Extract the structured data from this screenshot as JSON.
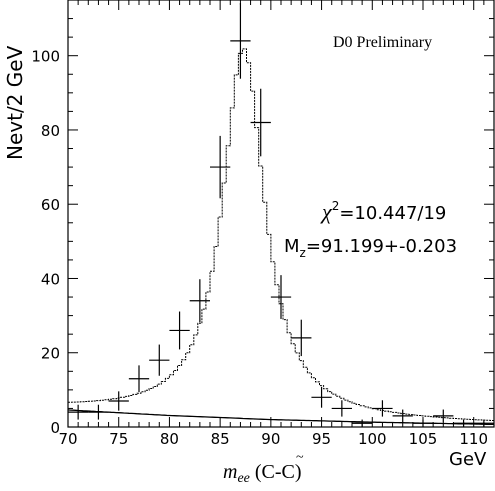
{
  "chart_data": {
    "type": "scatter",
    "title": "D0 Preliminary",
    "ylabel": "Nevt/2 GeV",
    "x_unit_label": "GeV",
    "xlabel_main": "m",
    "xlabel_sub": "ee",
    "xlabel_suffix": " (C-C)",
    "xlim": [
      70,
      112
    ],
    "ylim": [
      0,
      115
    ],
    "x_ticks": [
      70,
      75,
      80,
      85,
      90,
      95,
      100,
      105,
      110
    ],
    "y_ticks": [
      0,
      20,
      40,
      60,
      80,
      100
    ],
    "annotations": {
      "chi2_symbol": "χ",
      "chi2_sup": "2",
      "chi2_value": "=10.447/19",
      "mass_symbol": "M",
      "mass_sub": "z",
      "mass_value": "=91.199+-0.203"
    },
    "series": [
      {
        "kind": "data_points",
        "points": [
          {
            "x": 71,
            "y": 4,
            "yerr": 2
          },
          {
            "x": 73,
            "y": 4,
            "yerr": 2
          },
          {
            "x": 75,
            "y": 7,
            "yerr": 2.6
          },
          {
            "x": 77,
            "y": 13,
            "yerr": 3.6
          },
          {
            "x": 79,
            "y": 18,
            "yerr": 4.2
          },
          {
            "x": 81,
            "y": 26,
            "yerr": 5.1
          },
          {
            "x": 83,
            "y": 34,
            "yerr": 5.8
          },
          {
            "x": 85,
            "y": 70,
            "yerr": 8.4
          },
          {
            "x": 87,
            "y": 104,
            "yerr": 10.2
          },
          {
            "x": 89,
            "y": 82,
            "yerr": 9.1
          },
          {
            "x": 91,
            "y": 35,
            "yerr": 5.9
          },
          {
            "x": 93,
            "y": 24,
            "yerr": 4.9
          },
          {
            "x": 95,
            "y": 8,
            "yerr": 2.8
          },
          {
            "x": 97,
            "y": 5,
            "yerr": 2.2
          },
          {
            "x": 99,
            "y": 1,
            "yerr": 1
          },
          {
            "x": 101,
            "y": 5,
            "yerr": 2.2
          },
          {
            "x": 103,
            "y": 3,
            "yerr": 1.7
          },
          {
            "x": 105,
            "y": 1,
            "yerr": 1
          },
          {
            "x": 107,
            "y": 3,
            "yerr": 1.7
          },
          {
            "x": 109,
            "y": 1,
            "yerr": 1
          },
          {
            "x": 111,
            "y": 1,
            "yerr": 1
          }
        ]
      },
      {
        "kind": "fit_curve",
        "model": "breit_wigner_plus_background",
        "peak_x": 87.3,
        "peak_y": 102,
        "half_width": 2.5
      },
      {
        "kind": "background_curve",
        "points": [
          [
            70,
            4.6
          ],
          [
            80,
            3.1
          ],
          [
            90,
            2.0
          ],
          [
            100,
            1.3
          ],
          [
            110,
            0.8
          ],
          [
            112,
            0.7
          ]
        ]
      }
    ]
  }
}
